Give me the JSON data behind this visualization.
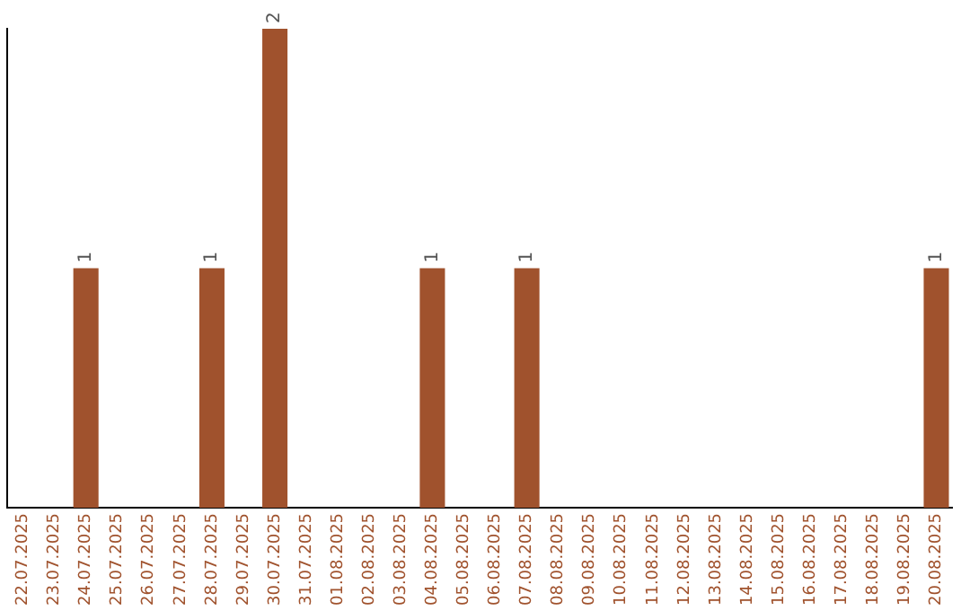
{
  "chart_data": {
    "type": "bar",
    "categories": [
      "22.07.2025",
      "23.07.2025",
      "24.07.2025",
      "25.07.2025",
      "26.07.2025",
      "27.07.2025",
      "28.07.2025",
      "29.07.2025",
      "30.07.2025",
      "31.07.2025",
      "01.08.2025",
      "02.08.2025",
      "03.08.2025",
      "04.08.2025",
      "05.08.2025",
      "06.08.2025",
      "07.08.2025",
      "08.08.2025",
      "09.08.2025",
      "10.08.2025",
      "11.08.2025",
      "12.08.2025",
      "13.08.2025",
      "14.08.2025",
      "15.08.2025",
      "16.08.2025",
      "17.08.2025",
      "18.08.2025",
      "19.08.2025",
      "20.08.2025"
    ],
    "values": [
      0,
      0,
      1,
      0,
      0,
      0,
      1,
      0,
      2,
      0,
      0,
      0,
      0,
      1,
      0,
      0,
      1,
      0,
      0,
      0,
      0,
      0,
      0,
      0,
      0,
      0,
      0,
      0,
      0,
      1
    ],
    "value_labels": [
      null,
      null,
      "1",
      null,
      null,
      null,
      "1",
      null,
      "2",
      null,
      null,
      null,
      null,
      "1",
      null,
      null,
      "1",
      null,
      null,
      null,
      null,
      null,
      null,
      null,
      null,
      null,
      null,
      null,
      null,
      "1"
    ],
    "color": "#a0522d",
    "grid": false,
    "legend": false
  }
}
